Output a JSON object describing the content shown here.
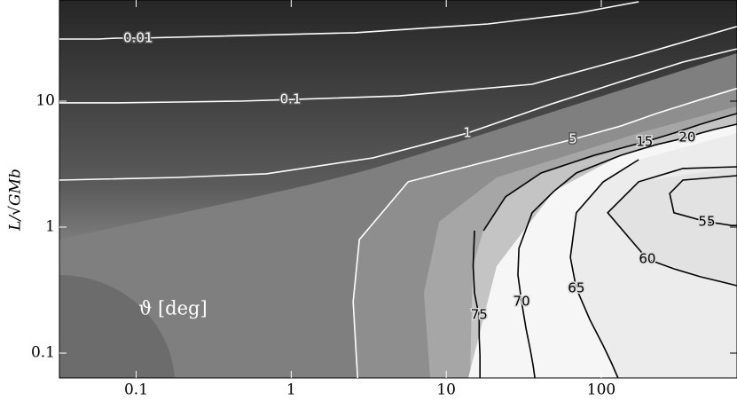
{
  "chart_data": {
    "type": "contour",
    "ylabel": "L/√GMb",
    "annotation": "ϑ [deg]",
    "xscale": "log",
    "yscale": "log",
    "xlim": [
      0.032,
      750
    ],
    "ylim": [
      0.0635,
      63.5
    ],
    "xticks": [
      0.1,
      1,
      10,
      100
    ],
    "yticks": [
      0.1,
      1,
      10
    ],
    "series": [
      {
        "level": 0.01,
        "color": "#ffffff",
        "x": [
          0.032,
          0.044,
          0.057,
          0.074,
          0.103,
          2.58,
          18.6,
          69,
          174
        ],
        "y": [
          31.1,
          31.1,
          31.1,
          31.6,
          31.6,
          34.9,
          41,
          49.8,
          61.5
        ]
      },
      {
        "level": 0.1,
        "color": "#ffffff",
        "x": [
          0.032,
          0.074,
          0.186,
          0.466,
          0.99,
          4.98,
          35.8,
          174,
          748
        ],
        "y": [
          9.69,
          9.69,
          9.84,
          10,
          10.3,
          11,
          13.6,
          23.2,
          39.1
        ]
      },
      {
        "level": 1,
        "color": "#ffffff",
        "x": [
          0.032,
          0.186,
          0.69,
          3.36,
          13.7,
          46.6,
          134,
          336,
          748
        ],
        "y": [
          2.36,
          2.48,
          2.65,
          3.54,
          5.58,
          9.4,
          14.3,
          20.4,
          26
        ]
      },
      {
        "level": 5,
        "color": "#ffffff",
        "x": [
          2.68,
          2.51,
          2.75,
          5.68,
          65.6,
          134,
          226,
          437,
          748
        ],
        "y": [
          0.0635,
          0.256,
          0.797,
          2.29,
          4.98,
          6.35,
          7.97,
          10.3,
          12.6
        ]
      },
      {
        "level": 15,
        "color": "#000000",
        "x": [
          17.4,
          24.1,
          40.9,
          90,
          190,
          294,
          437,
          568,
          748
        ],
        "y": [
          0.937,
          1.74,
          2.69,
          3.72,
          4.74,
          5.58,
          6.56,
          7.23,
          7.97
        ]
      },
      {
        "level": 20,
        "color": "#000000",
        "x": [
          49.8,
          69,
          134,
          226,
          358,
          437,
          532,
          631,
          748
        ],
        "y": [
          1.94,
          2.69,
          3.72,
          4.52,
          5.14,
          5.58,
          5.95,
          6.25,
          6.56
        ]
      },
      {
        "level": 75,
        "color": "#000000",
        "x": [
          15.2,
          14.9,
          15.2,
          15.8,
          16.3,
          16.3,
          16.5,
          16.5,
          16.5
        ],
        "y": [
          0.937,
          0.49,
          0.301,
          0.236,
          0.201,
          0.134,
          0.0968,
          0.0759,
          0.0635
        ]
      },
      {
        "level": 70,
        "color": "#000000",
        "x": [
          49.8,
          35.8,
          29.4,
          29,
          30.6,
          32.7,
          34.9,
          36.3,
          37.3
        ],
        "y": [
          1.94,
          1.3,
          0.678,
          0.417,
          0.256,
          0.157,
          0.105,
          0.0797,
          0.0635
        ]
      },
      {
        "level": 65,
        "color": "#000000",
        "x": [
          174,
          103,
          69,
          63.1,
          69,
          84.3,
          103,
          117,
          128
        ],
        "y": [
          3.43,
          2.29,
          1.3,
          0.576,
          0.327,
          0.185,
          0.114,
          0.0823,
          0.0635
        ]
      },
      {
        "level": 60,
        "color": "#000000",
        "x": [
          748,
          336,
          174,
          110,
          198,
          294,
          437,
          607,
          748
        ],
        "y": [
          3.01,
          2.92,
          2.29,
          1.3,
          0.557,
          0.467,
          0.403,
          0.366,
          0.343
        ]
      },
      {
        "level": 55,
        "color": "#000000",
        "x": [
          748,
          336,
          276,
          294,
          479,
          568,
          631,
          693,
          748
        ],
        "y": [
          2.56,
          2.36,
          1.85,
          1.3,
          1.1,
          1.07,
          1.05,
          1.03,
          1.03
        ]
      }
    ]
  }
}
